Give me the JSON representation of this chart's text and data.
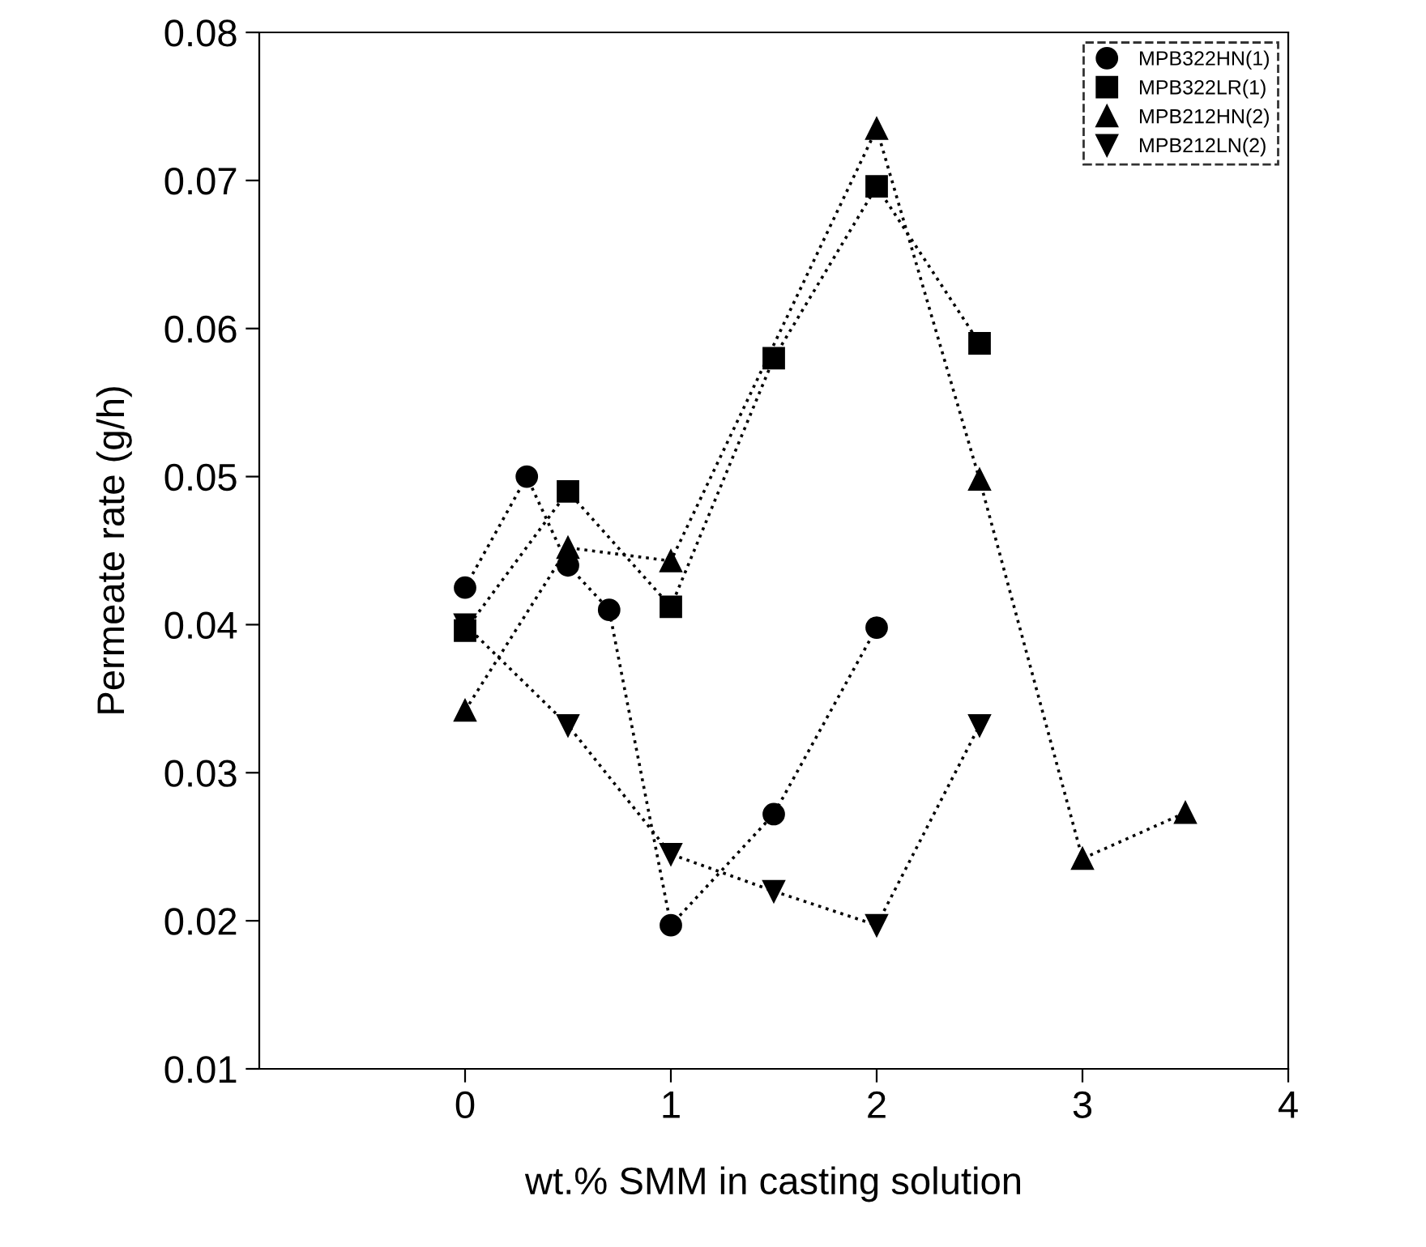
{
  "chart_data": {
    "type": "line",
    "xlabel": "wt.% SMM in casting solution",
    "ylabel": "Permeate rate (g/h)",
    "xlim": [
      -1,
      4
    ],
    "xticks": [
      0,
      1,
      2,
      3,
      4
    ],
    "ylim": [
      0.01,
      0.08
    ],
    "yticks": [
      {
        "value": 0.01,
        "label": "0.01"
      },
      {
        "value": 0.02,
        "label": "0.02"
      },
      {
        "value": 0.03,
        "label": "0.03"
      },
      {
        "value": 0.04,
        "label": "0.04"
      },
      {
        "value": 0.05,
        "label": "0.05"
      },
      {
        "value": 0.06,
        "label": "0.06"
      },
      {
        "value": 0.07,
        "label": "0.07"
      },
      {
        "value": 0.08,
        "label": "0.08"
      }
    ],
    "grid": false,
    "legend": "top right",
    "line_style": "dotted",
    "series": [
      {
        "name": "MPB322HN(1)",
        "color": "#000000",
        "marker": "circle",
        "x": [
          0,
          0.3,
          0.5,
          0.7,
          1,
          1.5,
          2
        ],
        "values": [
          0.0425,
          0.05,
          0.044,
          0.041,
          0.0197,
          0.0272,
          0.0398
        ]
      },
      {
        "name": "MPB322LR(1)",
        "color": "#000000",
        "marker": "square",
        "x": [
          0,
          0.5,
          1,
          1.5,
          2,
          2.5
        ],
        "values": [
          0.0396,
          0.049,
          0.0412,
          0.058,
          0.0696,
          0.059
        ]
      },
      {
        "name": "MPB212HN(2)",
        "color": "#000000",
        "marker": "triangle",
        "x": [
          0,
          0.5,
          1,
          2,
          2.5,
          3,
          3.5
        ],
        "values": [
          0.0342,
          0.0452,
          0.0443,
          0.0735,
          0.0498,
          0.0242,
          0.0273
        ]
      },
      {
        "name": "MPB212LN(2)",
        "color": "#000000",
        "marker": "triangle_down",
        "x": [
          0,
          0.5,
          1,
          1.5,
          2,
          2.5
        ],
        "values": [
          0.04,
          0.0332,
          0.0245,
          0.022,
          0.0197,
          0.0332
        ]
      }
    ]
  }
}
